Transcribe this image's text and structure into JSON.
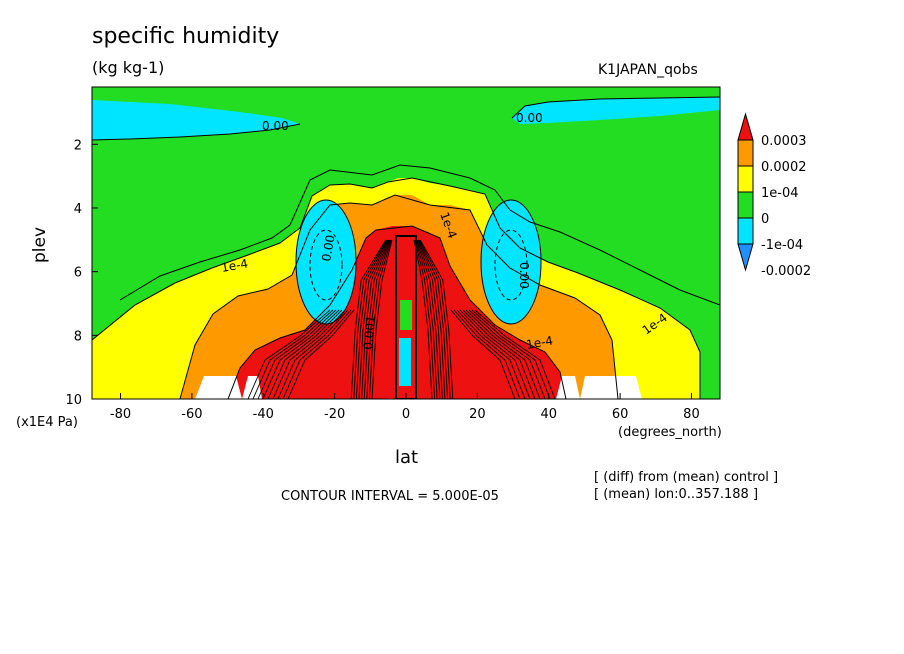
{
  "header": {
    "title": "specific humidity",
    "units": "(kg kg-1)",
    "dataset": "K1JAPAN_qobs"
  },
  "footer": {
    "contour_interval": "CONTOUR INTERVAL = 5.000E-05",
    "note_diff": "[ (diff) from (mean) control ]",
    "note_mean": "[ (mean) lon:0..357.188 ]"
  },
  "chart_data": {
    "type": "heatmap",
    "title": "specific humidity",
    "units": "(kg kg-1)",
    "dataset": "K1JAPAN_qobs",
    "xlabel": "lat",
    "xunits": "(degrees_north)",
    "ylabel": "plev",
    "yunits": "(x1E4 Pa)",
    "xlim": [
      -88,
      88
    ],
    "ylim": [
      10,
      0.2
    ],
    "x_ticks": [
      -80,
      -60,
      -40,
      -20,
      0,
      20,
      40,
      60,
      80
    ],
    "x_tick_labels": [
      "-80",
      "-60",
      "-40",
      "-20",
      "0",
      "20",
      "40",
      "60",
      "80"
    ],
    "y_ticks": [
      2,
      4,
      6,
      8,
      10
    ],
    "y_tick_labels": [
      "2",
      "4",
      "6",
      "8",
      "10"
    ],
    "colorbar": {
      "levels": [
        "-0.0002",
        "-1e-04",
        "0",
        "1e-04",
        "0.0002",
        "0.0003"
      ],
      "colors": [
        "#1e90ff",
        "#00e5ff",
        "#22dd22",
        "#ffff00",
        "#ff9900",
        "#ee1111"
      ]
    },
    "contour_labels": [
      "0.00",
      "0.00",
      "1e-4",
      "1e-4",
      "1e-4",
      "1e-4",
      "0.00",
      "0.00",
      "0.001"
    ],
    "contour_interval": "5.000E-05",
    "regions": [
      {
        "level": "-1e-04",
        "lat": [
          -88,
          -18
        ],
        "plev": [
          0.4,
          1.8
        ],
        "note": "upper-left cyan band"
      },
      {
        "level": "-1e-04",
        "lat": [
          32,
          88
        ],
        "plev": [
          0.4,
          1.2
        ],
        "note": "upper-right cyan band"
      },
      {
        "level": "-1e-04",
        "lat": [
          -34,
          -20
        ],
        "plev": [
          4.5,
          7.6
        ],
        "note": "left mid-level minimum"
      },
      {
        "level": "-1e-04",
        "lat": [
          22,
          38
        ],
        "plev": [
          4.5,
          7.6
        ],
        "note": "right mid-level minimum"
      },
      {
        "level": "0.0003",
        "lat": [
          -40,
          40
        ],
        "plev": [
          5,
          10
        ],
        "note": "tropical lower-troposphere maximum"
      }
    ]
  }
}
